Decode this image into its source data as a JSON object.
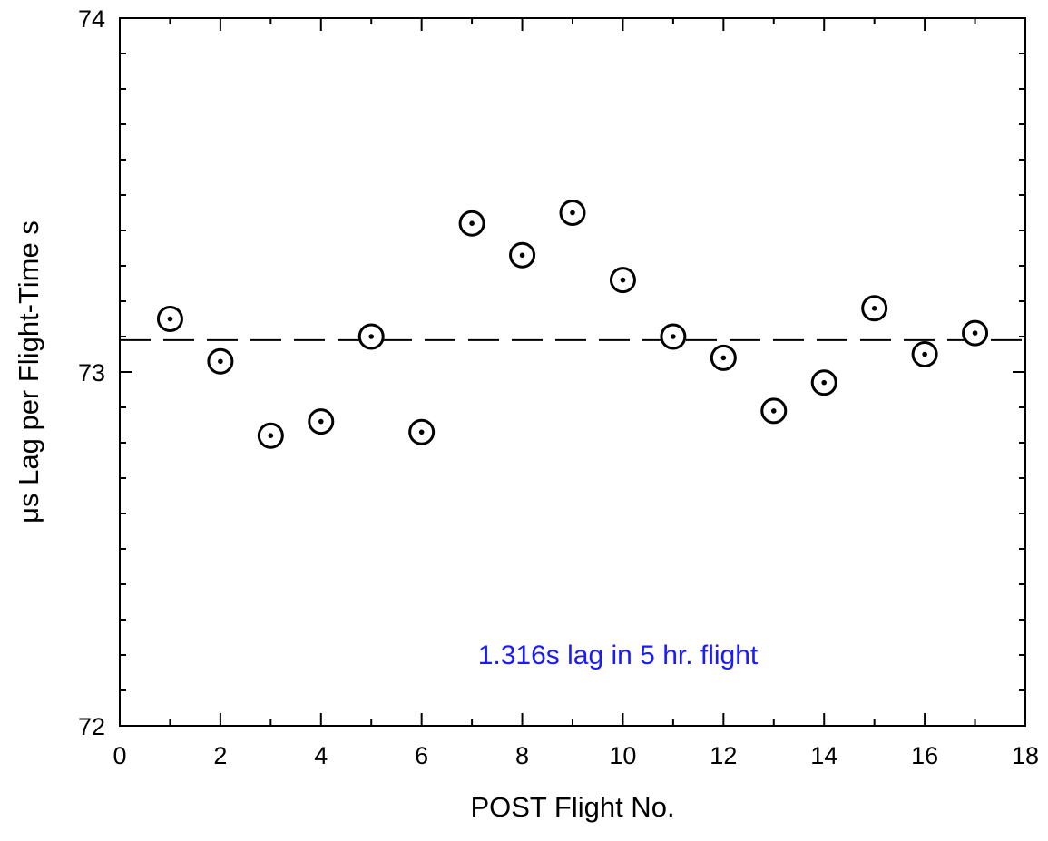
{
  "chart_data": {
    "type": "scatter",
    "title": "",
    "xlabel": "POST Flight No.",
    "ylabel": "μs Lag per Flight-Time s",
    "xlim": [
      0,
      18
    ],
    "ylim": [
      72,
      74
    ],
    "x_ticks": [
      "0",
      "2",
      "4",
      "6",
      "8",
      "10",
      "12",
      "14",
      "16",
      "18"
    ],
    "x_tick_values": [
      0,
      2,
      4,
      6,
      8,
      10,
      12,
      14,
      16,
      18
    ],
    "y_ticks": [
      "72",
      "73",
      "74"
    ],
    "y_tick_values": [
      72,
      73,
      74
    ],
    "y_minor_step": 0.1,
    "x_minor_step": 1,
    "grid": false,
    "marker": "circled-dot",
    "series": [
      {
        "x": [
          1,
          2,
          3,
          4,
          5,
          6,
          7,
          8,
          9,
          10,
          11,
          12,
          13,
          14,
          15,
          16,
          17
        ],
        "y": [
          73.15,
          73.03,
          72.82,
          72.86,
          73.1,
          72.83,
          73.42,
          73.33,
          73.45,
          73.26,
          73.1,
          73.04,
          72.89,
          72.97,
          73.18,
          73.05,
          73.11
        ]
      }
    ],
    "reference_line": {
      "y": 73.09,
      "style": "dashed"
    },
    "annotation": {
      "text": "1.316s lag in 5 hr. flight",
      "x": 9,
      "y": 72.2,
      "color": "#1a1aff"
    },
    "colors": {
      "axis": "#000000",
      "marker": "#000000",
      "annotation": "#1a1aff"
    }
  }
}
